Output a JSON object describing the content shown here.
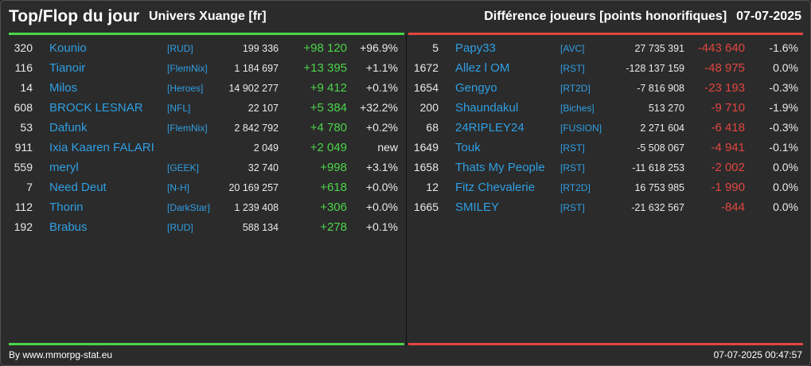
{
  "header": {
    "title": "Top/Flop du jour",
    "server": "Univers Xuange [fr]",
    "metric": "Différence joueurs [points honorifiques]",
    "date": "07-07-2025"
  },
  "colors": {
    "top": "#4cd44a",
    "flop": "#e0463f",
    "link": "#2f9fe3"
  },
  "top": [
    {
      "rank": "320",
      "name": "Kounio",
      "alliance": "[RUD]",
      "points": "199 336",
      "diff": "+98 120",
      "pct": "+96.9%"
    },
    {
      "rank": "116",
      "name": "Tianoir",
      "alliance": "[FlemNix]",
      "points": "1 184 697",
      "diff": "+13 395",
      "pct": "+1.1%"
    },
    {
      "rank": "14",
      "name": "Milos",
      "alliance": "[Heroes]",
      "points": "14 902 277",
      "diff": "+9 412",
      "pct": "+0.1%"
    },
    {
      "rank": "608",
      "name": "BROCK LESNAR",
      "alliance": "[NFL]",
      "points": "22 107",
      "diff": "+5 384",
      "pct": "+32.2%"
    },
    {
      "rank": "53",
      "name": "Dafunk",
      "alliance": "[FlemNix]",
      "points": "2 842 792",
      "diff": "+4 780",
      "pct": "+0.2%"
    },
    {
      "rank": "911",
      "name": "Ixia Kaaren FALARI",
      "alliance": "",
      "points": "2 049",
      "diff": "+2 049",
      "pct": "new"
    },
    {
      "rank": "559",
      "name": "meryl",
      "alliance": "[GEEK]",
      "points": "32 740",
      "diff": "+998",
      "pct": "+3.1%"
    },
    {
      "rank": "7",
      "name": "Need Deut",
      "alliance": "[N-H]",
      "points": "20 169 257",
      "diff": "+618",
      "pct": "+0.0%"
    },
    {
      "rank": "112",
      "name": "Thorin",
      "alliance": "[DarkStar]",
      "points": "1 239 408",
      "diff": "+306",
      "pct": "+0.0%"
    },
    {
      "rank": "192",
      "name": "Brabus",
      "alliance": "[RUD]",
      "points": "588 134",
      "diff": "+278",
      "pct": "+0.1%"
    }
  ],
  "flop": [
    {
      "rank": "5",
      "name": "Papy33",
      "alliance": "[AVC]",
      "points": "27 735 391",
      "diff": "-443 640",
      "pct": "-1.6%"
    },
    {
      "rank": "1672",
      "name": "Allez l OM",
      "alliance": "[RST]",
      "points": "-128 137 159",
      "diff": "-48 975",
      "pct": "0.0%"
    },
    {
      "rank": "1654",
      "name": "Gengyo",
      "alliance": "[RT2D]",
      "points": "-7 816 908",
      "diff": "-23 193",
      "pct": "-0.3%"
    },
    {
      "rank": "200",
      "name": "Shaundakul",
      "alliance": "[Biches]",
      "points": "513 270",
      "diff": "-9 710",
      "pct": "-1.9%"
    },
    {
      "rank": "68",
      "name": "24RIPLEY24",
      "alliance": "[FUSION]",
      "points": "2 271 604",
      "diff": "-6 418",
      "pct": "-0.3%"
    },
    {
      "rank": "1649",
      "name": "Touk",
      "alliance": "[RST]",
      "points": "-5 508 067",
      "diff": "-4 941",
      "pct": "-0.1%"
    },
    {
      "rank": "1658",
      "name": "Thats My People",
      "alliance": "[RST]",
      "points": "-11 618 253",
      "diff": "-2 002",
      "pct": "0.0%"
    },
    {
      "rank": "12",
      "name": "Fitz Chevalerie",
      "alliance": "[RT2D]",
      "points": "16 753 985",
      "diff": "-1 990",
      "pct": "0.0%"
    },
    {
      "rank": "1665",
      "name": "SMILEY",
      "alliance": "[RST]",
      "points": "-21 632 567",
      "diff": "-844",
      "pct": "0.0%"
    }
  ],
  "footer": {
    "source": "By www.mmorpg-stat.eu",
    "timestamp": "07-07-2025 00:47:57"
  }
}
